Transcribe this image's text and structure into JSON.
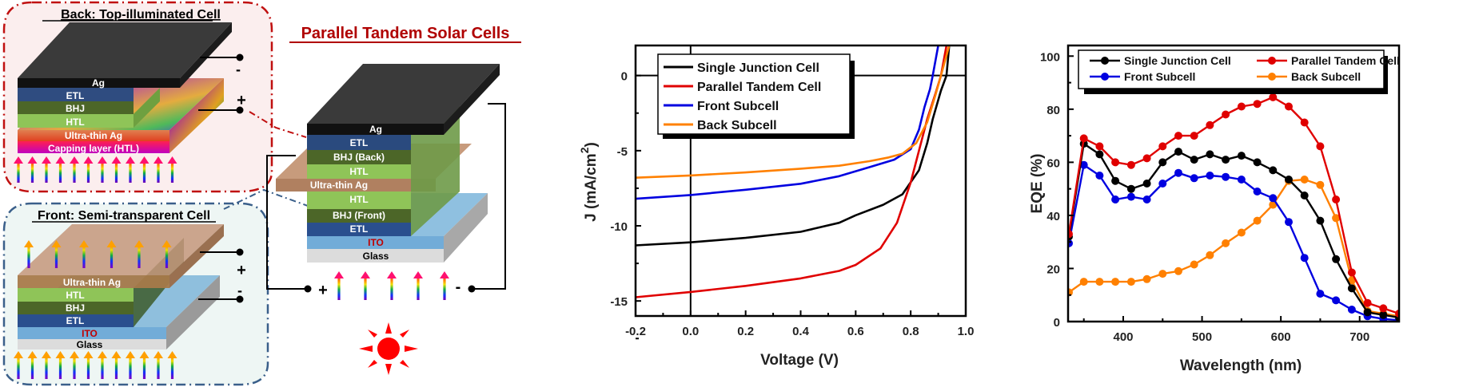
{
  "schematic": {
    "title": "Parallel Tandem Solar Cells",
    "back_panel": {
      "title": "Back: Top-illuminated Cell",
      "layers": [
        "Ag",
        "ETL",
        "BHJ",
        "HTL",
        "Ultra-thin Ag",
        "Capping layer (HTL)"
      ],
      "terminals": [
        "-",
        "+"
      ]
    },
    "front_panel": {
      "title": "Front: Semi-transparent Cell",
      "layers": [
        "Ultra-thin Ag",
        "HTL",
        "BHJ",
        "ETL",
        "ITO",
        "Glass"
      ],
      "terminals": [
        "+",
        "-"
      ]
    },
    "tandem_stack": {
      "layers": [
        "Ag",
        "ETL",
        "BHJ (Back)",
        "HTL",
        "Ultra-thin Ag",
        "HTL",
        "BHJ (Front)",
        "ETL",
        "ITO",
        "Glass"
      ],
      "terminals": [
        "+",
        "-"
      ]
    },
    "icons": [
      "sun-icon",
      "light-arrow-icon"
    ],
    "colors": {
      "title": "#b00000",
      "ito_label": "#c00000",
      "sun": "#ff0000"
    }
  },
  "chart_data": [
    {
      "type": "line",
      "title": "",
      "xlabel": "Voltage (V)",
      "ylabel": "J (mA/cm",
      "ylabel_sup": "2",
      "ylabel_end": ")",
      "xlim": [
        -0.2,
        1.0
      ],
      "ylim": [
        -16,
        2
      ],
      "xticks": [
        -0.2,
        0.0,
        0.2,
        0.4,
        0.6,
        0.8,
        1.0
      ],
      "xtick_labels": [
        "-0.2",
        "0.0",
        "0.2",
        "0.4",
        "0.6",
        "0.8",
        "1.0"
      ],
      "yticks": [
        0,
        -5,
        -10,
        -15
      ],
      "ytick_labels": [
        "0",
        "-5",
        "-10",
        "-15"
      ],
      "legend": "top-left",
      "series": [
        {
          "name": "Single Junction Cell",
          "color": "#000000",
          "x": [
            -0.2,
            0.0,
            0.2,
            0.4,
            0.54,
            0.6,
            0.7,
            0.77,
            0.83,
            0.86,
            0.88,
            0.91,
            0.93,
            0.94
          ],
          "y": [
            -11.3,
            -11.1,
            -10.8,
            -10.4,
            -9.8,
            -9.3,
            -8.6,
            -7.9,
            -6.3,
            -4.5,
            -2.9,
            -1.0,
            0.0,
            2.0
          ]
        },
        {
          "name": "Parallel Tandem Cell",
          "color": "#e00000",
          "x": [
            -0.2,
            0.0,
            0.2,
            0.4,
            0.54,
            0.6,
            0.69,
            0.75,
            0.8,
            0.83,
            0.86,
            0.89,
            0.91,
            0.93
          ],
          "y": [
            -14.75,
            -14.4,
            -14.0,
            -13.5,
            -13.0,
            -12.6,
            -11.5,
            -9.8,
            -7.1,
            -5.0,
            -2.9,
            -1.2,
            0.0,
            2.0
          ]
        },
        {
          "name": "Front Subcell",
          "color": "#0000e0",
          "x": [
            -0.2,
            0.0,
            0.2,
            0.4,
            0.54,
            0.65,
            0.74,
            0.8,
            0.83,
            0.85,
            0.87,
            0.88,
            0.9
          ],
          "y": [
            -8.2,
            -7.95,
            -7.6,
            -7.2,
            -6.7,
            -6.1,
            -5.6,
            -4.9,
            -3.6,
            -2.1,
            -0.9,
            0.0,
            2.0
          ]
        },
        {
          "name": "Back Subcell",
          "color": "#ff8000",
          "x": [
            -0.2,
            0.0,
            0.2,
            0.4,
            0.54,
            0.65,
            0.72,
            0.77,
            0.82,
            0.86,
            0.89,
            0.91,
            0.94
          ],
          "y": [
            -6.8,
            -6.65,
            -6.45,
            -6.2,
            -6.0,
            -5.7,
            -5.45,
            -5.2,
            -4.5,
            -3.1,
            -1.3,
            0.0,
            2.0
          ]
        }
      ]
    },
    {
      "type": "line",
      "title": "",
      "xlabel": "Wavelength (nm)",
      "ylabel": "EQE (%)",
      "xlim": [
        330,
        750
      ],
      "ylim": [
        0,
        104
      ],
      "xticks": [
        400,
        500,
        600,
        700
      ],
      "xtick_labels": [
        "400",
        "500",
        "600",
        "700"
      ],
      "yticks": [
        0,
        20,
        40,
        60,
        80,
        100
      ],
      "ytick_labels": [
        "0",
        "20",
        "40",
        "60",
        "80",
        "100"
      ],
      "legend": "top",
      "markers": true,
      "series": [
        {
          "name": "Single Junction Cell",
          "color": "#000000",
          "x": [
            331,
            350,
            370,
            390,
            410,
            430,
            450,
            470,
            490,
            510,
            530,
            550,
            570,
            590,
            610,
            630,
            650,
            670,
            690,
            710,
            730,
            750
          ],
          "y": [
            32,
            67,
            63,
            53,
            50,
            52,
            60,
            64,
            61,
            63,
            61,
            62.5,
            60,
            57,
            53.5,
            47.5,
            38,
            23.5,
            12.5,
            3.5,
            2.5,
            1.5
          ]
        },
        {
          "name": "Parallel Tandem Cell",
          "color": "#e00000",
          "x": [
            331,
            350,
            370,
            390,
            410,
            430,
            450,
            470,
            490,
            510,
            530,
            550,
            570,
            590,
            610,
            630,
            650,
            670,
            690,
            710,
            730,
            750
          ],
          "y": [
            33,
            69,
            66,
            60,
            59,
            61.5,
            66,
            70,
            70,
            74,
            78,
            81,
            82,
            84.5,
            81,
            75,
            66,
            46,
            18.5,
            7,
            5,
            3
          ]
        },
        {
          "name": "Front Subcell",
          "color": "#0000e0",
          "x": [
            331,
            350,
            370,
            390,
            410,
            430,
            450,
            470,
            490,
            510,
            530,
            550,
            570,
            590,
            610,
            630,
            650,
            670,
            690,
            710,
            730,
            750
          ],
          "y": [
            29.5,
            59,
            55,
            46,
            47,
            46,
            52,
            56,
            54,
            55,
            54.5,
            53.5,
            49,
            46.5,
            37.5,
            24,
            10.5,
            8,
            4.5,
            2,
            1,
            0.5
          ]
        },
        {
          "name": "Back Subcell",
          "color": "#ff8000",
          "x": [
            331,
            350,
            370,
            390,
            410,
            430,
            450,
            470,
            490,
            510,
            530,
            550,
            570,
            590,
            610,
            630,
            650,
            670,
            690,
            710,
            730,
            750
          ],
          "y": [
            11,
            15,
            15,
            15,
            15,
            16,
            18,
            19,
            21.5,
            25,
            29.5,
            33.5,
            38,
            44,
            53,
            53.5,
            51.5,
            39,
            15.5,
            4,
            3,
            2
          ]
        }
      ]
    }
  ]
}
